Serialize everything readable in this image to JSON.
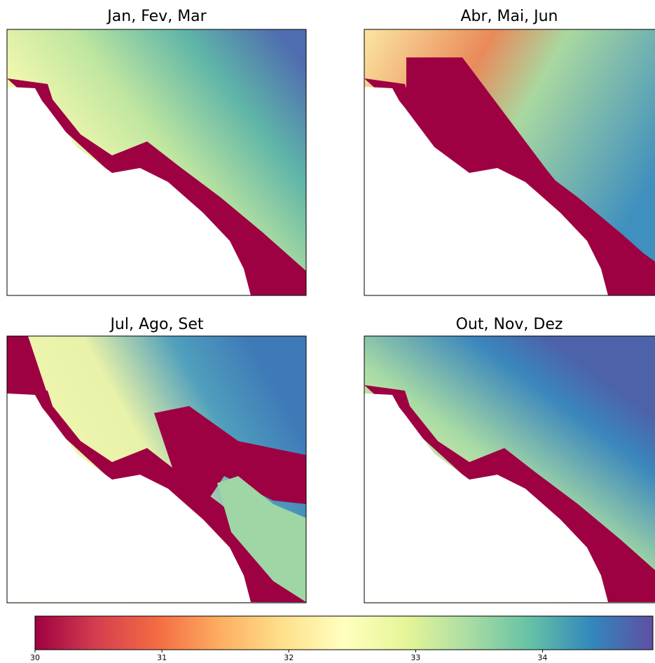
{
  "panels": [
    {
      "title": "Jan, Fev, Mar"
    },
    {
      "title": "Abr, Mai, Jun"
    },
    {
      "title": "Jul, Ago, Set"
    },
    {
      "title": "Out, Nov, Dez"
    }
  ],
  "colorbar": {
    "lim": [
      30,
      34.87
    ],
    "ticks": [
      30,
      31,
      32,
      33,
      34
    ]
  }
}
